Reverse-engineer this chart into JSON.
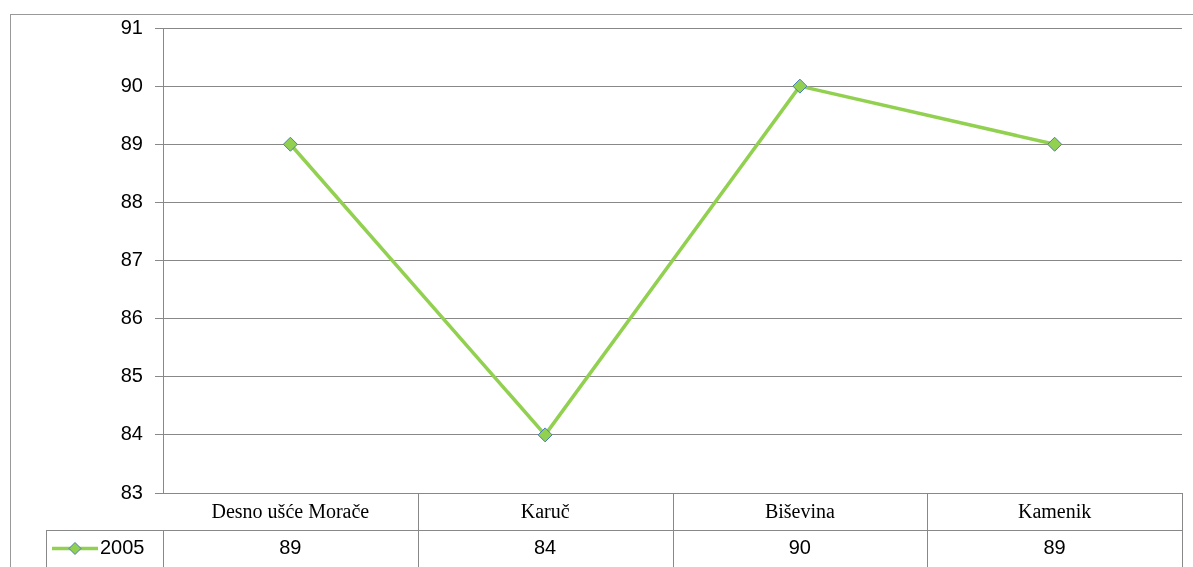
{
  "chart_data": {
    "type": "line",
    "categories": [
      "Desno ušće Morače",
      "Karuč",
      "Biševina",
      "Kamenik"
    ],
    "series": [
      {
        "name": "2005",
        "color": "#92d050",
        "values": [
          89,
          84,
          90,
          89
        ]
      }
    ],
    "ylim": [
      83,
      91
    ],
    "yticks": [
      83,
      84,
      85,
      86,
      87,
      88,
      89,
      90,
      91
    ],
    "grid": "y",
    "marker": "diamond",
    "legend": "bottom",
    "data_labels": true
  }
}
